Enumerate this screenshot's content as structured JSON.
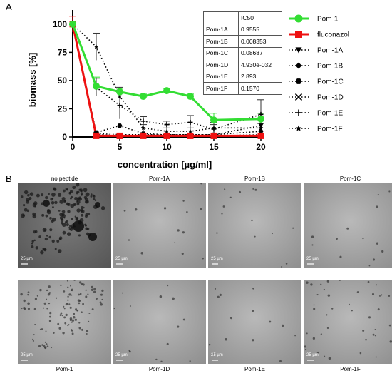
{
  "panels": {
    "a": "A",
    "b": "B"
  },
  "chart_data": {
    "type": "line",
    "xlabel": "concentration [µg/ml]",
    "ylabel": "biomass [%]",
    "xlim": [
      0,
      20
    ],
    "ylim": [
      0,
      110
    ],
    "xticks": [
      "0",
      "5",
      "10",
      "15",
      "20"
    ],
    "yticks": [
      "0",
      "25",
      "50",
      "75",
      "100"
    ],
    "grid": false,
    "legend_position": "right",
    "series": [
      {
        "name": "Pom-1",
        "color": "#33dd33",
        "style": "solid",
        "marker": "circle",
        "x": [
          0,
          2.5,
          5,
          7.5,
          10,
          12.5,
          15,
          20
        ],
        "y": [
          100,
          45,
          40,
          36,
          41,
          36,
          15,
          16
        ]
      },
      {
        "name": "fluconazol",
        "color": "#ee1111",
        "style": "solid",
        "marker": "square",
        "x": [
          0,
          2.5,
          5,
          7.5,
          10,
          12.5,
          15,
          20
        ],
        "y": [
          100,
          1,
          1,
          1,
          1,
          1,
          1,
          1
        ]
      },
      {
        "name": "Pom-1A",
        "color": "#000000",
        "style": "dotted",
        "marker": "triangle-down",
        "x": [
          0,
          2.5,
          5,
          7.5,
          10,
          12.5,
          15,
          20
        ],
        "y": [
          100,
          3,
          2,
          2,
          2,
          2,
          2,
          10
        ]
      },
      {
        "name": "Pom-1B",
        "color": "#000000",
        "style": "dotted",
        "marker": "diamond",
        "x": [
          0,
          2.5,
          5,
          7.5,
          10,
          12.5,
          15,
          20
        ],
        "y": [
          100,
          2,
          1,
          1,
          1,
          1,
          1,
          2
        ]
      },
      {
        "name": "Pom-1C",
        "color": "#000000",
        "style": "dotted",
        "marker": "hexagon",
        "x": [
          0,
          2.5,
          5,
          7.5,
          10,
          12.5,
          15,
          20
        ],
        "y": [
          100,
          4,
          10,
          3,
          2,
          2,
          2,
          5
        ]
      },
      {
        "name": "Pom-1D",
        "color": "#000000",
        "style": "dotted",
        "marker": "x",
        "x": [
          0,
          2.5,
          5,
          7.5,
          10,
          12.5,
          15,
          20
        ],
        "y": [
          100,
          2,
          1,
          1,
          1,
          1,
          1,
          1
        ]
      },
      {
        "name": "Pom-1E",
        "color": "#000000",
        "style": "dotted",
        "marker": "plus",
        "x": [
          0,
          2.5,
          5,
          7.5,
          10,
          12.5,
          15,
          20
        ],
        "y": [
          100,
          44,
          28,
          14,
          11,
          13,
          7,
          20
        ]
      },
      {
        "name": "Pom-1F",
        "color": "#000000",
        "style": "dotted",
        "marker": "star",
        "x": [
          0,
          2.5,
          5,
          7.5,
          10,
          12.5,
          15,
          20
        ],
        "y": [
          100,
          80,
          36,
          8,
          5,
          5,
          8,
          8
        ]
      }
    ]
  },
  "ic50_table": {
    "header": "IC50",
    "rows": [
      {
        "name": "Pom-1A",
        "value": "0.9555"
      },
      {
        "name": "Pom-1B",
        "value": "0.008353"
      },
      {
        "name": "Pom-1C",
        "value": "0.08687"
      },
      {
        "name": "Pom-1D",
        "value": "4.930e-032"
      },
      {
        "name": "Pom-1E",
        "value": "2.893"
      },
      {
        "name": "Pom-1F",
        "value": "0.1570"
      }
    ]
  },
  "micrographs": {
    "scale_label": "25 µm",
    "top_row": [
      "no peptide",
      "Pom-1A",
      "Pom-1B",
      "Pom-1C"
    ],
    "bottom_row": [
      "Pom-1",
      "Pom-1D",
      "Pom-1E",
      "Pom-1F"
    ]
  }
}
